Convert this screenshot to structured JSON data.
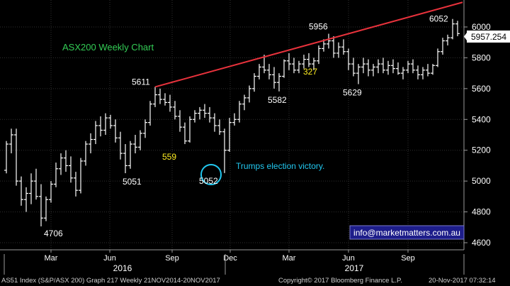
{
  "chart_data": {
    "type": "bar",
    "subtype": "weekly-ohlc",
    "title": "ASX200 Weekly Chart",
    "ylim": [
      4600,
      6150
    ],
    "ytick_values": [
      4600,
      4800,
      5000,
      5200,
      5400,
      5600,
      5800,
      6000
    ],
    "ytick_labels": [
      "4600",
      "4800",
      "5000",
      "5200",
      "5400",
      "5600",
      "5800",
      "6000"
    ],
    "current_value_label": "5957.254",
    "x_month_labels": [
      "Mar",
      "Jun",
      "Sep",
      "Dec",
      "Mar",
      "Jun",
      "Sep"
    ],
    "x_year_labels": [
      "2016",
      "2017"
    ],
    "grid": true,
    "colors": {
      "background": "#000000",
      "bars": "#ffffff",
      "grid": "#2f2f2f",
      "trendline": "#e8323c",
      "title": "#33cc55",
      "annotation_yellow": "#ffee22",
      "annotation_cyan": "#22c8f0"
    },
    "series": [
      {
        "values": [
          [
            5070,
            5260,
            5050,
            5240
          ],
          [
            5240,
            5340,
            5180,
            5300
          ],
          [
            5300,
            5340,
            4970,
            5000
          ],
          [
            5000,
            5030,
            4840,
            4880
          ],
          [
            4880,
            4960,
            4800,
            4920
          ],
          [
            4920,
            5050,
            4850,
            5000
          ],
          [
            5000,
            5080,
            4880,
            4900
          ],
          [
            4900,
            4980,
            4706,
            4760
          ],
          [
            4760,
            4900,
            4740,
            4880
          ],
          [
            4880,
            5000,
            4860,
            4980
          ],
          [
            4980,
            5120,
            4960,
            5080
          ],
          [
            5080,
            5180,
            5040,
            5150
          ],
          [
            5150,
            5200,
            5060,
            5100
          ],
          [
            5100,
            5160,
            4990,
            5020
          ],
          [
            5020,
            5060,
            4900,
            4940
          ],
          [
            4940,
            5150,
            4920,
            5130
          ],
          [
            5130,
            5260,
            5100,
            5240
          ],
          [
            5240,
            5310,
            5180,
            5270
          ],
          [
            5270,
            5390,
            5240,
            5360
          ],
          [
            5360,
            5420,
            5290,
            5330
          ],
          [
            5330,
            5440,
            5300,
            5410
          ],
          [
            5410,
            5430,
            5340,
            5360
          ],
          [
            5360,
            5400,
            5250,
            5280
          ],
          [
            5280,
            5320,
            5140,
            5180
          ],
          [
            5180,
            5240,
            5051,
            5100
          ],
          [
            5100,
            5260,
            5080,
            5240
          ],
          [
            5240,
            5300,
            5180,
            5220
          ],
          [
            5220,
            5330,
            5200,
            5310
          ],
          [
            5310,
            5400,
            5280,
            5380
          ],
          [
            5380,
            5520,
            5360,
            5500
          ],
          [
            5500,
            5611,
            5480,
            5560
          ],
          [
            5560,
            5600,
            5500,
            5530
          ],
          [
            5530,
            5570,
            5490,
            5510
          ],
          [
            5510,
            5560,
            5450,
            5480
          ],
          [
            5480,
            5520,
            5400,
            5420
          ],
          [
            5420,
            5460,
            5320,
            5350
          ],
          [
            5350,
            5380,
            5240,
            5260
          ],
          [
            5260,
            5420,
            5250,
            5400
          ],
          [
            5400,
            5460,
            5380,
            5440
          ],
          [
            5440,
            5480,
            5400,
            5460
          ],
          [
            5460,
            5500,
            5410,
            5440
          ],
          [
            5440,
            5480,
            5380,
            5410
          ],
          [
            5410,
            5440,
            5320,
            5360
          ],
          [
            5360,
            5400,
            5300,
            5320
          ],
          [
            5320,
            5340,
            5052,
            5200
          ],
          [
            5200,
            5410,
            5190,
            5380
          ],
          [
            5380,
            5440,
            5360,
            5400
          ],
          [
            5400,
            5520,
            5380,
            5500
          ],
          [
            5500,
            5560,
            5460,
            5540
          ],
          [
            5540,
            5620,
            5510,
            5600
          ],
          [
            5600,
            5700,
            5580,
            5680
          ],
          [
            5680,
            5760,
            5660,
            5740
          ],
          [
            5740,
            5820,
            5700,
            5720
          ],
          [
            5720,
            5760,
            5660,
            5690
          ],
          [
            5690,
            5740,
            5600,
            5640
          ],
          [
            5640,
            5700,
            5582,
            5680
          ],
          [
            5680,
            5790,
            5670,
            5780
          ],
          [
            5780,
            5830,
            5720,
            5760
          ],
          [
            5760,
            5800,
            5700,
            5720
          ],
          [
            5720,
            5780,
            5700,
            5760
          ],
          [
            5760,
            5820,
            5730,
            5790
          ],
          [
            5790,
            5830,
            5740,
            5760
          ],
          [
            5760,
            5800,
            5720,
            5780
          ],
          [
            5780,
            5880,
            5760,
            5860
          ],
          [
            5860,
            5920,
            5840,
            5890
          ],
          [
            5890,
            5956,
            5860,
            5910
          ],
          [
            5910,
            5940,
            5800,
            5830
          ],
          [
            5830,
            5900,
            5800,
            5870
          ],
          [
            5870,
            5920,
            5820,
            5840
          ],
          [
            5840,
            5860,
            5720,
            5760
          ],
          [
            5760,
            5800,
            5680,
            5700
          ],
          [
            5700,
            5760,
            5629,
            5740
          ],
          [
            5740,
            5800,
            5700,
            5760
          ],
          [
            5760,
            5790,
            5680,
            5720
          ],
          [
            5720,
            5760,
            5680,
            5740
          ],
          [
            5740,
            5790,
            5700,
            5760
          ],
          [
            5760,
            5800,
            5700,
            5720
          ],
          [
            5720,
            5780,
            5690,
            5750
          ],
          [
            5750,
            5790,
            5700,
            5730
          ],
          [
            5730,
            5770,
            5690,
            5700
          ],
          [
            5700,
            5740,
            5660,
            5720
          ],
          [
            5720,
            5780,
            5700,
            5760
          ],
          [
            5760,
            5790,
            5700,
            5720
          ],
          [
            5720,
            5750,
            5660,
            5690
          ],
          [
            5690,
            5740,
            5660,
            5720
          ],
          [
            5720,
            5760,
            5680,
            5700
          ],
          [
            5700,
            5760,
            5690,
            5750
          ],
          [
            5750,
            5860,
            5740,
            5840
          ],
          [
            5840,
            5930,
            5820,
            5910
          ],
          [
            5910,
            5950,
            5880,
            5930
          ],
          [
            5930,
            6052,
            5920,
            6020
          ],
          [
            6020,
            6040,
            5940,
            5957
          ]
        ]
      }
    ],
    "trendline": {
      "from": [
        30,
        5611
      ],
      "to": [
        92,
        6160
      ]
    },
    "annotations": [
      {
        "text": "5611",
        "color": "#ffffff",
        "at": [
          30,
          5611
        ]
      },
      {
        "text": "5956",
        "color": "#ffffff",
        "at": [
          65,
          5956
        ]
      },
      {
        "text": "6052",
        "color": "#ffffff",
        "at": [
          90,
          6052
        ]
      },
      {
        "text": "4706",
        "color": "#ffffff",
        "at": [
          7,
          4706
        ]
      },
      {
        "text": "5051",
        "color": "#ffffff",
        "at": [
          24,
          5051
        ]
      },
      {
        "text": "5052",
        "color": "#ffffff",
        "at": [
          44,
          5052
        ]
      },
      {
        "text": "5582",
        "color": "#ffffff",
        "at": [
          55,
          5582
        ]
      },
      {
        "text": "5629",
        "color": "#ffffff",
        "at": [
          71,
          5629
        ]
      },
      {
        "text": "559",
        "color": "#ffee22",
        "at": [
          33,
          5170
        ]
      },
      {
        "text": "327",
        "color": "#ffee22",
        "at": [
          63,
          5720
        ]
      },
      {
        "text": "Trumps election victory.",
        "color": "#22c8f0",
        "at": [
          44,
          5070
        ]
      }
    ],
    "watermark": "info@marketmatters.com.au"
  },
  "footer": {
    "security": "AS51 Index (S&P/ASX 200) Graph 217  Weekly 21NOV2014-20NOV2017",
    "copyright": "Copyright© 2017 Bloomberg Finance L.P.",
    "timestamp": "20-Nov-2017 07:32:14"
  }
}
